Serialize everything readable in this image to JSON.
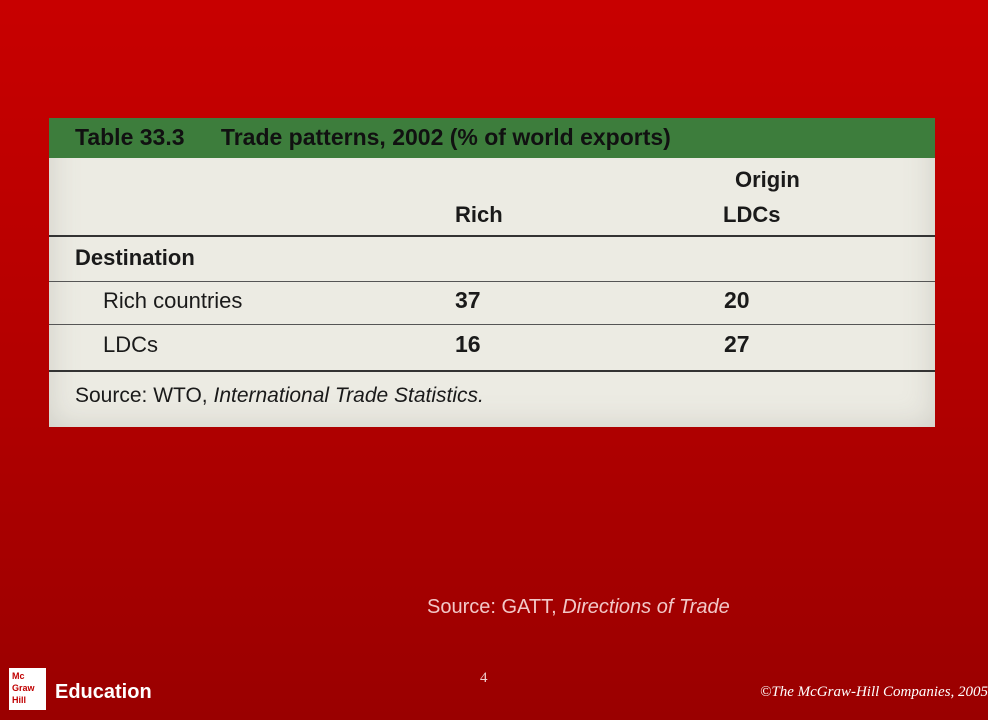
{
  "table": {
    "number": "Table 33.3",
    "title": "Trade patterns, 2002 (% of world exports)",
    "origin_label": "Origin",
    "col_rich": "Rich",
    "col_ldcs": "LDCs",
    "destination_label": "Destination",
    "rows": [
      {
        "label": "Rich countries",
        "rich": "37",
        "ldcs": "20"
      },
      {
        "label": "LDCs",
        "rich": "16",
        "ldcs": "27"
      }
    ],
    "source_prefix": "Source: WTO, ",
    "source_italic": "International Trade Statistics.",
    "header_color": "#3d7d3c"
  },
  "caption": {
    "prefix": "Source: GATT, ",
    "italic": "Directions of Trade"
  },
  "footer": {
    "page_number": "4",
    "logo_lines": [
      "Mc",
      "Graw",
      "Hill"
    ],
    "logo_word": "Education",
    "copyright": "©The McGraw-Hill Companies, 2005"
  },
  "colors": {
    "background_top": "#c80000",
    "background_bottom": "#9a0000",
    "caption": "#f2c7c7"
  }
}
